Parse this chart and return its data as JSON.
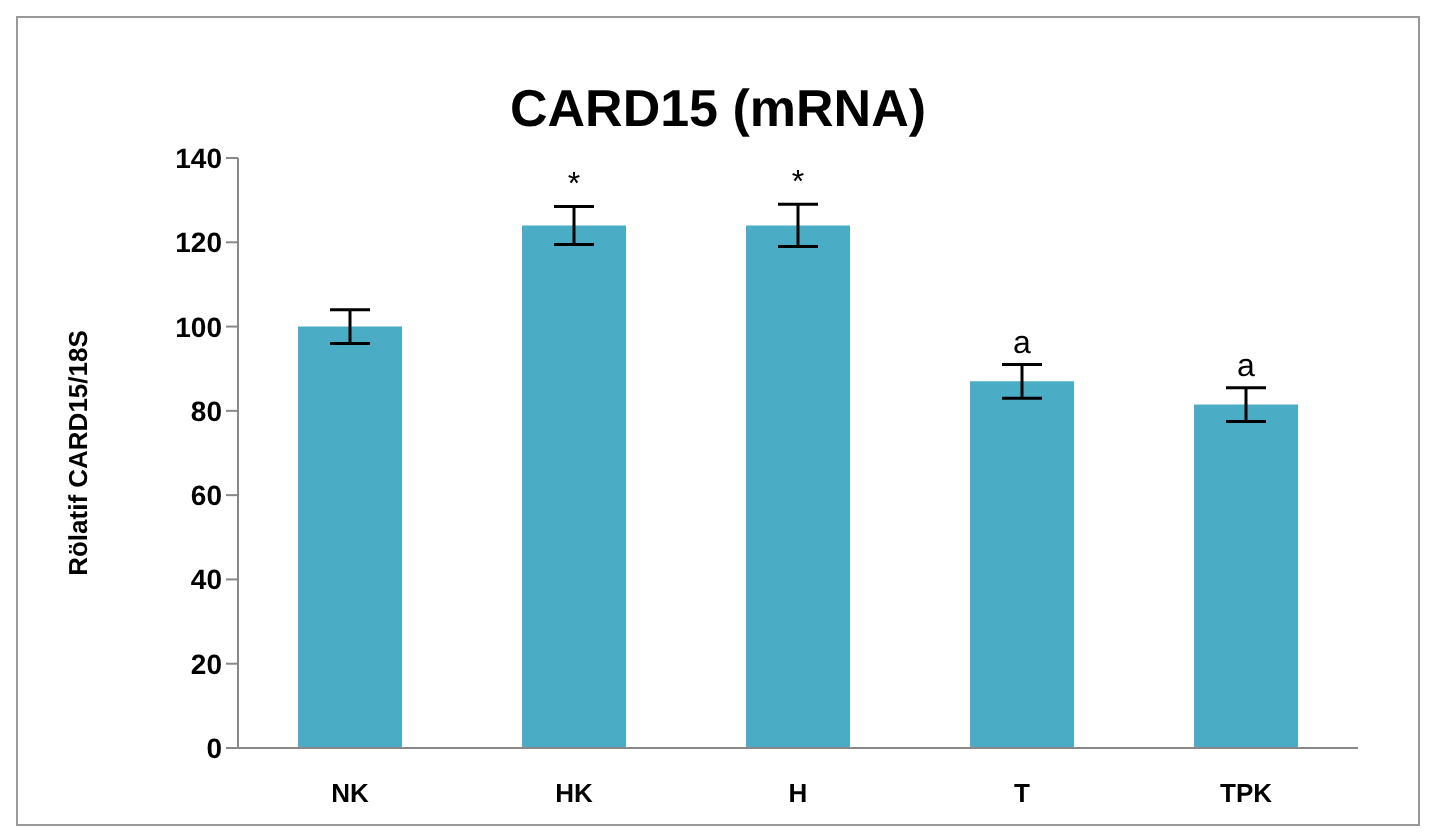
{
  "chart_data": {
    "type": "bar",
    "title": "CARD15 (mRNA)",
    "ylabel": "Rölatif CARD15/18S",
    "categories": [
      "NK",
      "HK",
      "H",
      "T",
      "TPK"
    ],
    "values": [
      100,
      124,
      124,
      87,
      81.5
    ],
    "errors": [
      4,
      4.5,
      5,
      4,
      4
    ],
    "color": "#4bacc6",
    "ylim": [
      0,
      140
    ],
    "yticks": [
      0,
      20,
      40,
      60,
      80,
      100,
      120,
      140
    ],
    "grid": false,
    "annotations": [
      {
        "text": "*",
        "x": "HK",
        "y": 124
      },
      {
        "text": "*",
        "x": "H",
        "y": 124
      },
      {
        "text": "a",
        "x": "T",
        "y": 87
      },
      {
        "text": "a",
        "x": "TPK",
        "y": 81.5
      }
    ]
  }
}
